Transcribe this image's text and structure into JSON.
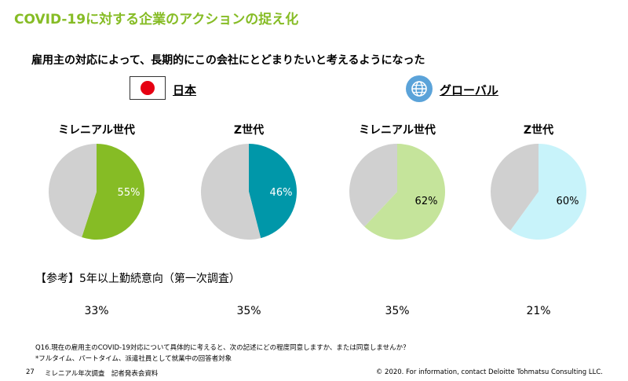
{
  "title": "COVID-19に対する企業のアクションの捉え化",
  "subtitle": "雇用主の対応によって、長期的にこの会社にとどまりたいと考えるようになった",
  "regions": {
    "japan": "日本",
    "global": "グローバル"
  },
  "chart_data": [
    {
      "type": "pie",
      "group": "日本",
      "title": "ミレニアル世代",
      "value_label": "55%",
      "values": [
        55,
        45
      ],
      "colors": [
        "#86BC25",
        "#D0D0D0"
      ]
    },
    {
      "type": "pie",
      "group": "日本",
      "title": "Z世代",
      "value_label": "46%",
      "values": [
        46,
        54
      ],
      "colors": [
        "#0097A9",
        "#D0D0D0"
      ]
    },
    {
      "type": "pie",
      "group": "グローバル",
      "title": "ミレニアル世代",
      "value_label": "62%",
      "values": [
        62,
        38
      ],
      "colors": [
        "#C5E49B",
        "#D0D0D0"
      ]
    },
    {
      "type": "pie",
      "group": "グローバル",
      "title": "Z世代",
      "value_label": "60%",
      "values": [
        60,
        40
      ],
      "colors": [
        "#C8F3FA",
        "#D0D0D0"
      ]
    }
  ],
  "reference": {
    "heading": "【参考】5年以上勤続意向（第一次調査）",
    "values": [
      "33%",
      "35%",
      "35%",
      "21%"
    ]
  },
  "footnotes": [
    "Q16.現在の雇用主のCOVID-19対応について具体的に考えると、次の記述にどの程度同意しますか、または同意しませんか？",
    "*フルタイム、パートタイム、派遣社員として就業中の回答者対象"
  ],
  "footer": {
    "page": "27",
    "doc": "ミレニアル年次調査　記者発表会資料",
    "copyright": "© 2020. For information, contact Deloitte Tohmatsu Consulting LLC."
  },
  "icons": {
    "flag": "japan-flag-icon",
    "globe": "globe-icon"
  }
}
